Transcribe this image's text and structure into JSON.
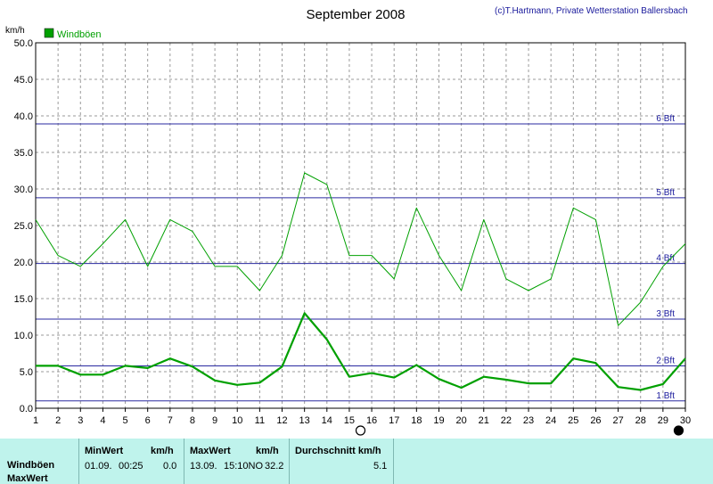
{
  "chart_data": {
    "type": "line",
    "title": "September 2008",
    "credit": "(c)T.Hartmann, Private Wetterstation Ballersbach",
    "ylabel": "km/h",
    "ylim": [
      0,
      50
    ],
    "xlim": [
      1,
      30
    ],
    "yticks": [
      "0.0",
      "5.0",
      "10.0",
      "15.0",
      "20.0",
      "25.0",
      "30.0",
      "35.0",
      "40.0",
      "45.0",
      "50.0"
    ],
    "xticks": [
      "1",
      "2",
      "3",
      "4",
      "5",
      "6",
      "7",
      "8",
      "9",
      "10",
      "11",
      "12",
      "13",
      "14",
      "15",
      "16",
      "17",
      "18",
      "19",
      "20",
      "21",
      "22",
      "23",
      "24",
      "25",
      "26",
      "27",
      "28",
      "29",
      "30"
    ],
    "grid": true,
    "legend": "top-left",
    "x": [
      1,
      2,
      3,
      4,
      5,
      6,
      7,
      8,
      9,
      10,
      11,
      12,
      13,
      14,
      15,
      16,
      17,
      18,
      19,
      20,
      21,
      22,
      23,
      24,
      25,
      26,
      27,
      28,
      29,
      30
    ],
    "series": [
      {
        "name": "Windböen",
        "color": "#00a000",
        "values": [
          25.8,
          20.9,
          19.4,
          22.5,
          25.8,
          19.4,
          25.8,
          24.2,
          19.4,
          19.4,
          16.1,
          20.9,
          32.2,
          30.6,
          20.9,
          20.9,
          17.7,
          27.4,
          20.9,
          16.1,
          25.8,
          17.7,
          16.1,
          17.7,
          27.4,
          25.8,
          11.3,
          14.5,
          19.4,
          22.5
        ]
      },
      {
        "color": "#00a000",
        "values": [
          5.8,
          5.8,
          4.6,
          4.6,
          5.8,
          5.5,
          6.8,
          5.7,
          3.8,
          3.2,
          3.5,
          5.7,
          13.0,
          9.4,
          4.3,
          4.8,
          4.2,
          5.9,
          4.0,
          2.8,
          4.3,
          3.9,
          3.4,
          3.4,
          6.8,
          6.2,
          2.9,
          2.5,
          3.3,
          6.8
        ]
      }
    ],
    "beaufort": [
      {
        "label": "1 Bft",
        "value": 1.0
      },
      {
        "label": "2 Bft",
        "value": 5.8
      },
      {
        "label": "3 Bft",
        "value": 12.2
      },
      {
        "label": "4 Bft",
        "value": 19.8
      },
      {
        "label": "5 Bft",
        "value": 28.8
      },
      {
        "label": "6 Bft",
        "value": 38.9
      }
    ],
    "moon_markers": [
      {
        "day": 15.5,
        "phase": "full-moon"
      },
      {
        "day": 29.7,
        "phase": "new-moon"
      }
    ]
  },
  "stats": {
    "min_header": "MinWert",
    "min_unit": "km/h",
    "max_header": "MaxWert",
    "max_unit": "km/h",
    "avg_header": "Durchschnitt km/h",
    "row1_label": "Windböen",
    "row2_label": "MaxWert",
    "min_date": "01.09.",
    "min_time": "00:25",
    "min_value": "0.0",
    "max_date": "13.09.",
    "max_time": "15:10NO",
    "max_value": "32.2",
    "avg_value": "5.1"
  }
}
